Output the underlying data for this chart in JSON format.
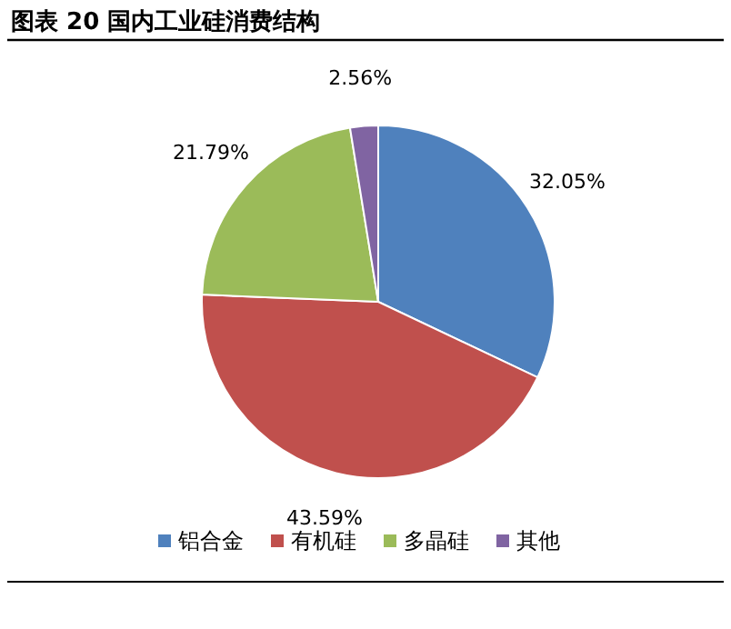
{
  "chart_data": {
    "type": "pie",
    "title": "图表 20 国内工业硅消费结构",
    "categories": [
      "铝合金",
      "有机硅",
      "多晶硅",
      "其他"
    ],
    "values": [
      32.05,
      43.59,
      21.79,
      2.56
    ],
    "colors": [
      "#4f81bd",
      "#c0504d",
      "#9bbb59",
      "#8064a2"
    ],
    "value_labels": [
      "32.05%",
      "43.59%",
      "21.79%",
      "2.56%"
    ],
    "legend": "bottom"
  }
}
